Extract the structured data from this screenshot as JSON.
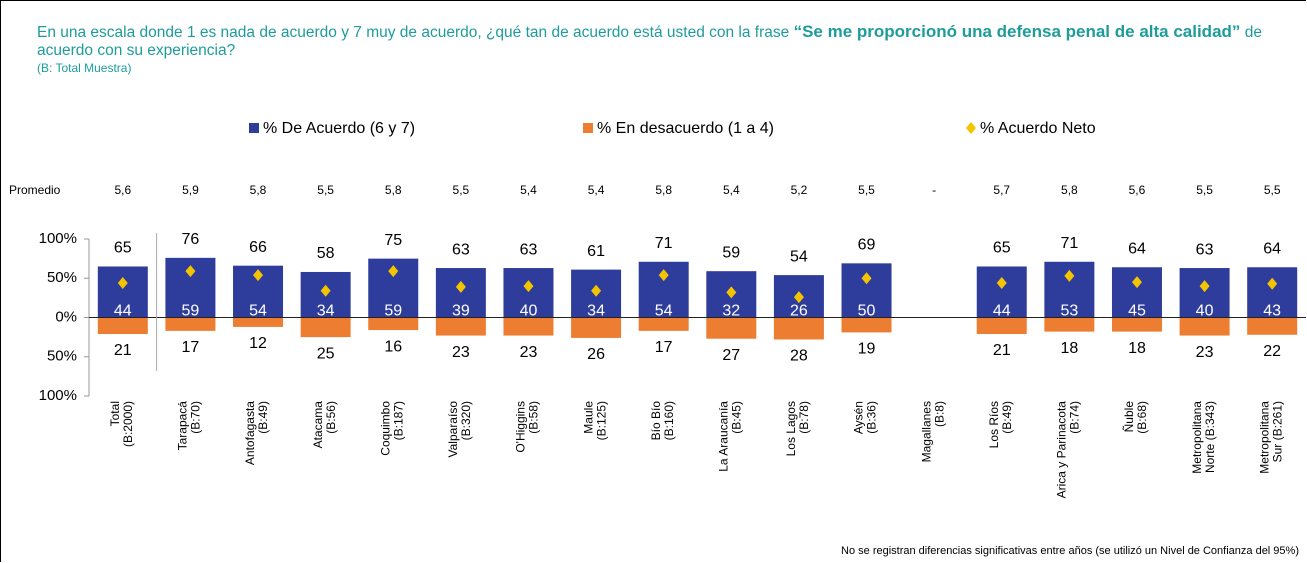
{
  "chart_data": {
    "type": "bar",
    "title": [
      "En una escala donde 1 es nada de acuerdo y 7 muy de acuerdo, ¿qué tan de acuerdo está usted con la frase ",
      "“Se me proporcionó una defensa penal de alta calidad”",
      " de acuerdo con su experiencia?"
    ],
    "subtitle": "(B: Total Muestra)",
    "footnote": "No se registran diferencias significativas entre años (se utilizó un Nivel de Confianza del 95%)",
    "categories": [
      [
        "Total",
        "(B:2000)"
      ],
      [
        "Tarapacá",
        "(B:70)"
      ],
      [
        "Antofagasta",
        "(B:49)"
      ],
      [
        "Atacama",
        "(B:56)"
      ],
      [
        "Coquimbo",
        "(B:187)"
      ],
      [
        "Valparaíso",
        "(B:320)"
      ],
      [
        "O'Higgins",
        "(B:58)"
      ],
      [
        "Maule",
        "(B:125)"
      ],
      [
        "Bío Bío",
        "(B:160)"
      ],
      [
        "La Araucanía",
        "(B:45)"
      ],
      [
        "Los Lagos",
        "(B:78)"
      ],
      [
        "Aysén",
        "(B:36)"
      ],
      [
        "Magallanes",
        "(B:8)"
      ],
      [
        "Los Ríos",
        "(B:49)"
      ],
      [
        "Arica y Parinacota",
        "(B:74)"
      ],
      [
        "Ñuble",
        "(B:68)"
      ],
      [
        "Metropolitana",
        "Norte (B:343)"
      ],
      [
        "Metropolitana",
        "Sur (B:261)"
      ]
    ],
    "series": [
      {
        "name": "% De Acuerdo (6 y 7)",
        "color": "#2e3d9b",
        "values": [
          65,
          76,
          66,
          58,
          75,
          63,
          63,
          61,
          71,
          59,
          54,
          69,
          null,
          65,
          71,
          64,
          63,
          64
        ]
      },
      {
        "name": "% En desacuerdo (1 a 4)",
        "color": "#ed7d31",
        "values": [
          21,
          17,
          12,
          25,
          16,
          23,
          23,
          26,
          17,
          27,
          28,
          19,
          null,
          21,
          18,
          18,
          23,
          22
        ]
      },
      {
        "name": "% Acuerdo Neto",
        "color": "#f5c400",
        "values": [
          44,
          59,
          54,
          34,
          59,
          39,
          40,
          34,
          54,
          32,
          26,
          50,
          null,
          44,
          53,
          45,
          40,
          43
        ]
      }
    ],
    "promedio": {
      "label": "Promedio",
      "values": [
        5.6,
        5.9,
        5.8,
        5.5,
        5.8,
        5.5,
        5.4,
        5.4,
        5.8,
        5.4,
        5.2,
        5.5,
        null,
        5.7,
        5.8,
        5.6,
        5.5,
        5.5
      ],
      "value_labels": [
        "5,6",
        "5,9",
        "5,8",
        "5,5",
        "5,8",
        "5,5",
        "5,4",
        "5,4",
        "5,8",
        "5,4",
        "5,2",
        "5,5",
        "-",
        "5,7",
        "5,8",
        "5,6",
        "5,5",
        "5,5"
      ]
    },
    "ylim": [
      -100,
      100
    ],
    "yticks": [
      {
        "value": 100,
        "label": "100%"
      },
      {
        "value": 50,
        "label": "50%"
      },
      {
        "value": 0,
        "label": "0%"
      },
      {
        "value": -50,
        "label": "50%"
      },
      {
        "value": -100,
        "label": "100%"
      }
    ]
  }
}
